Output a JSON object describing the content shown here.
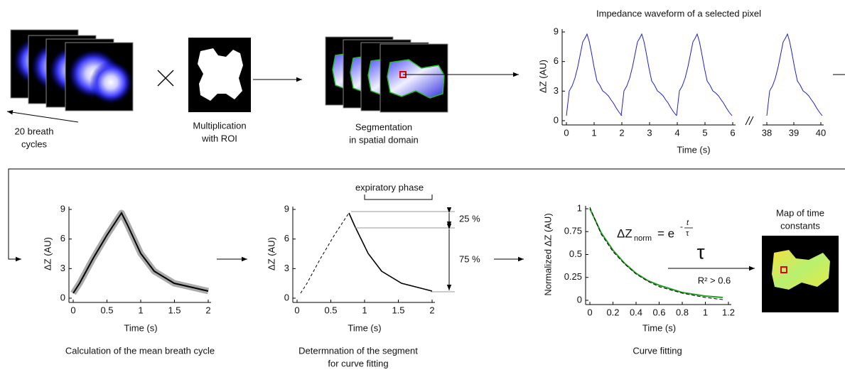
{
  "panels": {
    "stack": {
      "caption": [
        "20 breath",
        "cycles"
      ]
    },
    "roi": {
      "caption": [
        "Multiplication",
        "with ROI"
      ]
    },
    "segmentation": {
      "caption": [
        "Segmentation",
        "in spatial domain"
      ]
    },
    "waveform": {
      "title": "Impedance waveform of a selected pixel",
      "y_label": "ΔZ (AU)",
      "x_label": "Time (s)",
      "ylim": [
        0,
        9
      ],
      "yticks": [
        0,
        3,
        6,
        9
      ],
      "xlim_left": [
        0,
        6
      ],
      "xticks_left": [
        0,
        1,
        2,
        3,
        4,
        5,
        6
      ],
      "xlim_right": [
        38,
        40
      ],
      "xticks_right": [
        38,
        39,
        40
      ]
    },
    "mean_cycle": {
      "y_label": "ΔZ (AU)",
      "x_label": "Time (s)",
      "ylim": [
        0,
        9
      ],
      "yticks": [
        0,
        3,
        6,
        9
      ],
      "xlim": [
        0,
        2
      ],
      "xticks": [
        0,
        0.5,
        1,
        1.5,
        2
      ],
      "caption": [
        "Calculation of the mean breath cycle"
      ]
    },
    "segment": {
      "y_label": "ΔZ (AU)",
      "x_label": "Time (s)",
      "ylim": [
        0,
        9
      ],
      "yticks": [
        0,
        3,
        6,
        9
      ],
      "xlim": [
        0,
        2
      ],
      "xticks": [
        0,
        0.5,
        1,
        1.5,
        2
      ],
      "annotation": "expiratory phase",
      "upper_pct": "25 %",
      "lower_pct": "75 %",
      "caption": [
        "Determnation of  the segment",
        "for curve fitting"
      ]
    },
    "fitting": {
      "y_label": "Normalized ΔZ (AU)",
      "x_label": "Time (s)",
      "ylim": [
        0,
        1
      ],
      "yticks": [
        0,
        0.25,
        0.5,
        0.75,
        1
      ],
      "xlim": [
        0,
        1.2
      ],
      "xticks": [
        0,
        0.2,
        0.4,
        0.6,
        0.8,
        1,
        1.2
      ],
      "formula": {
        "lhs": "ΔZ",
        "lhs_sub": "norm",
        "rhs": "= e",
        "exp_sign": "-",
        "exp_num": "t",
        "exp_den": "τ"
      },
      "caption": [
        "Curve fitting"
      ]
    },
    "map": {
      "symbol": "τ",
      "condition": "R² > 0.6",
      "title": [
        "Map of time",
        "constants"
      ]
    }
  }
}
